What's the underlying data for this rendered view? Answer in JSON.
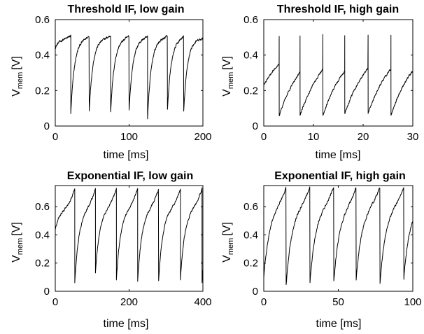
{
  "chart_data": [
    {
      "type": "line",
      "title": "Threshold IF, low gain",
      "xlabel": "time [ms]",
      "ylabel": "V",
      "ylabel_sub": "mem",
      "ylabel_unit": "[V]",
      "xlim": [
        0,
        200
      ],
      "ylim": [
        0,
        0.6
      ],
      "xticks": [
        "0",
        "100",
        "200"
      ],
      "yticks": [
        "0",
        "0.2",
        "0.4",
        "0.6"
      ],
      "grid": false,
      "series": [
        {
          "color": "#000000",
          "spike_times": [
            21,
            46,
            75,
            100,
            125,
            152,
            174
          ],
          "minima": [
            0.07,
            0.09,
            0.08,
            0.09,
            0.04,
            0.09,
            0.08
          ],
          "rest": 0.44,
          "peak": 0.51,
          "plateau": 0.49,
          "rise_tau_frac": 0.2,
          "noise": 0.01
        }
      ]
    },
    {
      "type": "line",
      "title": "Threshold IF, high gain",
      "xlabel": "time [ms]",
      "ylabel": "V",
      "ylabel_sub": "mem",
      "ylabel_unit": "[V]",
      "xlim": [
        0,
        30
      ],
      "ylim": [
        0,
        0.6
      ],
      "xticks": [
        "0",
        "10",
        "20",
        "30"
      ],
      "yticks": [
        "0",
        "0.2",
        "0.4",
        "0.6"
      ],
      "grid": false,
      "series": [
        {
          "color": "#000000",
          "spike_times": [
            3.1,
            7.3,
            11.9,
            16.3,
            21.0,
            25.6
          ],
          "minima": [
            0.06,
            0.06,
            0.06,
            0.07,
            0.07,
            0.06
          ],
          "rest": 0.23,
          "peak": 0.51,
          "plateau": 0.51,
          "rise_tau_frac": 1.2,
          "noise": 0.008
        }
      ]
    },
    {
      "type": "line",
      "title": "Exponential IF, low gain",
      "xlabel": "time [ms]",
      "ylabel": "V",
      "ylabel_sub": "mem",
      "ylabel_unit": "[V]",
      "xlim": [
        0,
        500
      ],
      "ylim": [
        0,
        0.75
      ],
      "xticks": [
        "0",
        "200",
        "400"
      ],
      "yticks": [
        "0",
        "0.2",
        "0.4",
        "0.6"
      ],
      "grid": false,
      "series": [
        {
          "color": "#000000",
          "spike_times": [
            66,
            136,
            207,
            279,
            350,
            424,
            497
          ],
          "minima": [
            0.06,
            0.13,
            0.08,
            0.07,
            0.07,
            0.08,
            0.06
          ],
          "rest": 0.44,
          "peak": 0.73,
          "plateau": 0.58,
          "rise_tau_frac": 0.2,
          "noise": 0.01
        }
      ]
    },
    {
      "type": "line",
      "title": "Exponential IF, high gain",
      "xlabel": "time [ms]",
      "ylabel": "V",
      "ylabel_sub": "mem",
      "ylabel_unit": "[V]",
      "xlim": [
        0,
        100
      ],
      "ylim": [
        0,
        0.75
      ],
      "xticks": [
        "0",
        "50",
        "100"
      ],
      "yticks": [
        "0",
        "0.2",
        "0.4",
        "0.6"
      ],
      "grid": false,
      "series": [
        {
          "color": "#000000",
          "spike_times": [
            15,
            31,
            47,
            62,
            78,
            94
          ],
          "minima": [
            0.04,
            0.06,
            0.07,
            0.08,
            0.06,
            0.09
          ],
          "rest": 0.1,
          "peak": 0.75,
          "plateau": 0.61,
          "rise_tau_frac": 0.25,
          "noise": 0.012
        }
      ]
    }
  ]
}
